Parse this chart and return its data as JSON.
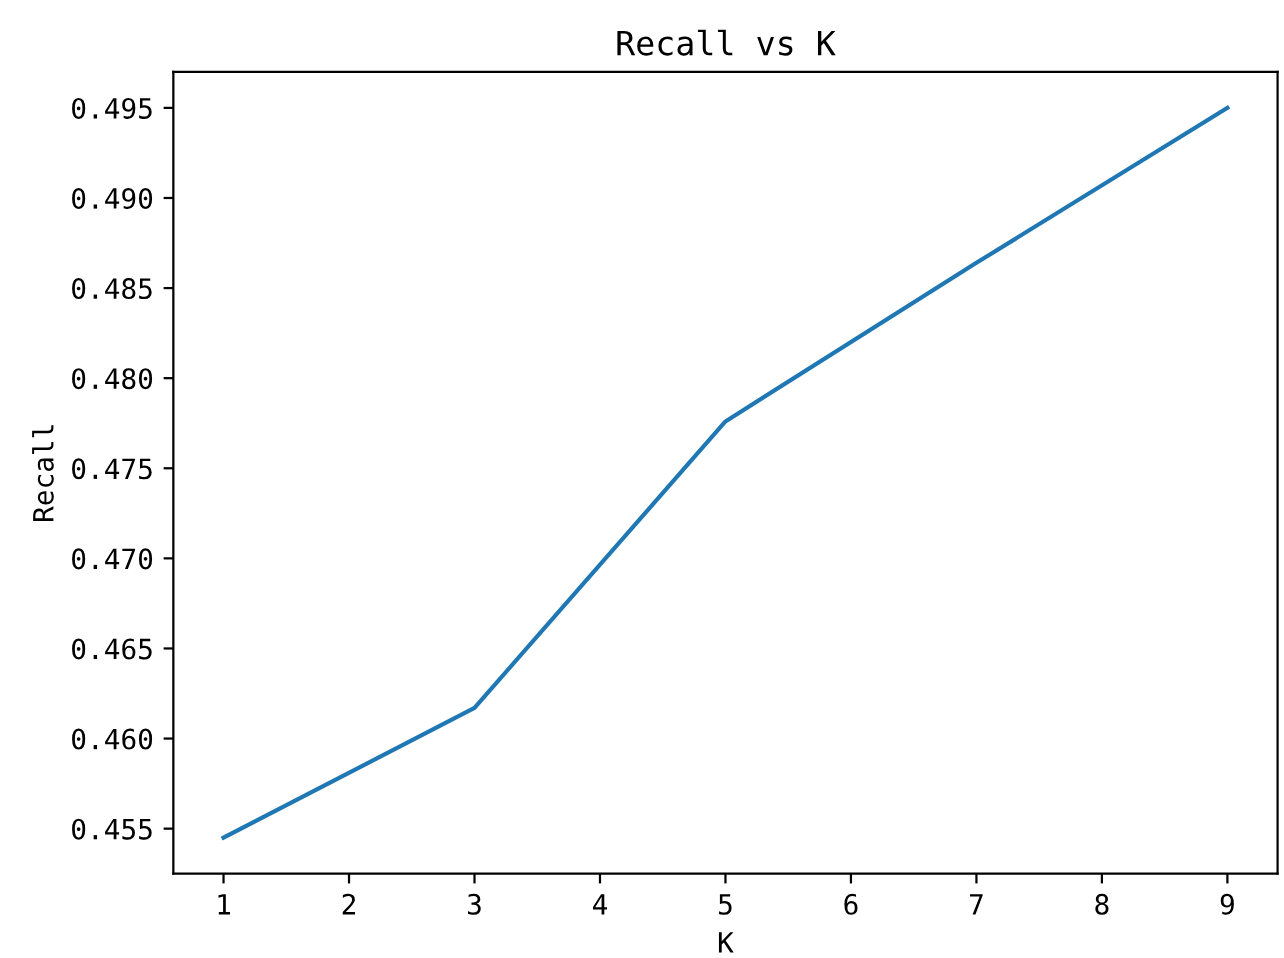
{
  "chart_data": {
    "type": "line",
    "title": "Recall vs K",
    "xlabel": "K",
    "ylabel": "Recall",
    "x": [
      1,
      3,
      5,
      7,
      9
    ],
    "series": [
      {
        "color": "#1f77b4",
        "values": [
          0.4545,
          0.4617,
          0.4776,
          0.4864,
          0.495
        ]
      }
    ],
    "xlim": [
      0.6,
      9.4
    ],
    "xticks": [
      1,
      2,
      3,
      4,
      5,
      6,
      7,
      8,
      9
    ],
    "ylim": [
      0.4525,
      0.497
    ],
    "yticks": [
      0.455,
      {
        "value": 0.46,
        "label": "0.460"
      },
      0.465,
      {
        "value": 0.47,
        "label": "0.470"
      },
      0.475,
      {
        "value": 0.48,
        "label": "0.480"
      },
      0.485,
      {
        "value": 0.49,
        "label": "0.490"
      },
      0.495
    ],
    "grid": false,
    "legend": false,
    "marker": "none",
    "line_style": "solid"
  }
}
